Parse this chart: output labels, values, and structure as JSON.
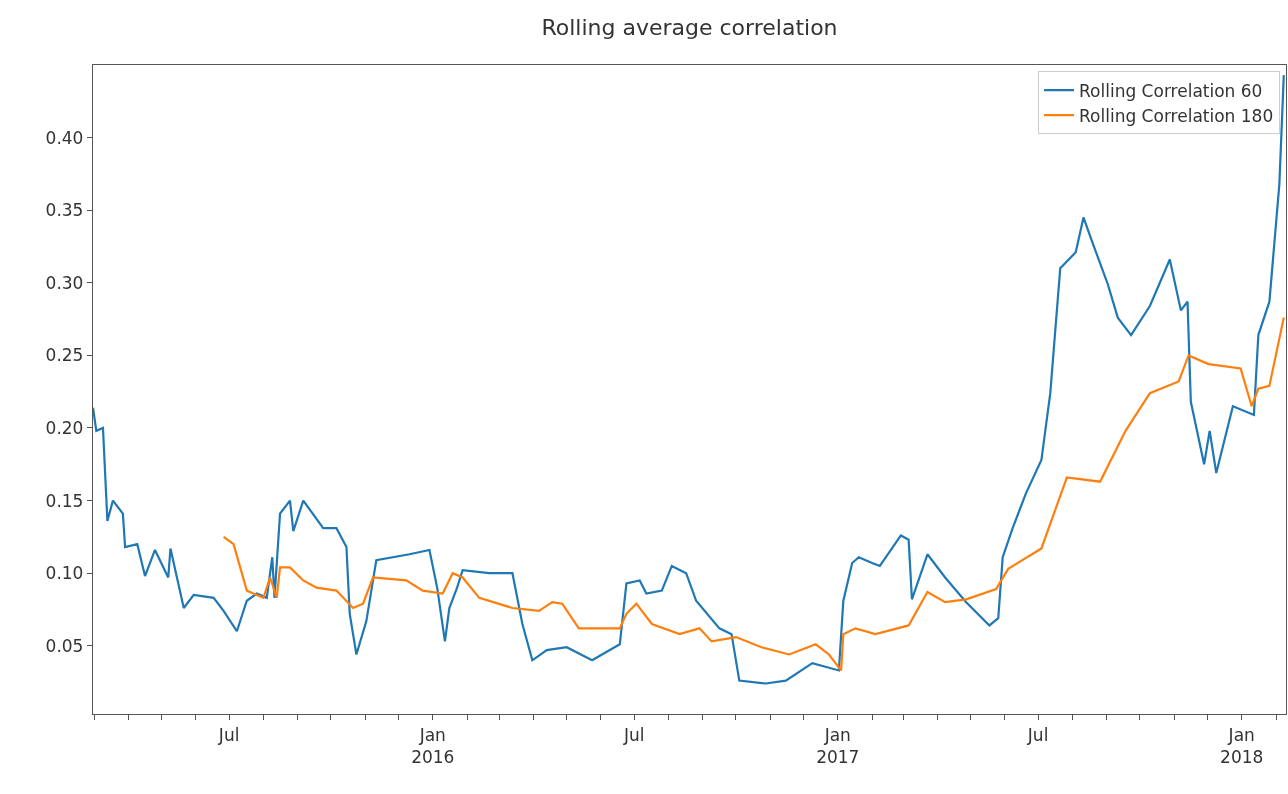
{
  "chart_data": {
    "type": "line",
    "title": "Rolling average correlation",
    "xlim": [
      "2015-02-28",
      "2018-02-10"
    ],
    "xticks": [
      {
        "value": "2015-03-01",
        "label": null
      },
      {
        "value": "2015-04-01",
        "label": null
      },
      {
        "value": "2015-05-01",
        "label": null
      },
      {
        "value": "2015-06-01",
        "label": null
      },
      {
        "value": "2015-07-01",
        "label": "Jul"
      },
      {
        "value": "2015-08-01",
        "label": null
      },
      {
        "value": "2015-09-01",
        "label": null
      },
      {
        "value": "2015-10-01",
        "label": null
      },
      {
        "value": "2015-11-01",
        "label": null
      },
      {
        "value": "2015-12-01",
        "label": null
      },
      {
        "value": "2016-01-01",
        "label": "Jan\n2016"
      },
      {
        "value": "2016-02-01",
        "label": null
      },
      {
        "value": "2016-03-01",
        "label": null
      },
      {
        "value": "2016-04-01",
        "label": null
      },
      {
        "value": "2016-05-01",
        "label": null
      },
      {
        "value": "2016-06-01",
        "label": null
      },
      {
        "value": "2016-07-01",
        "label": "Jul"
      },
      {
        "value": "2016-08-01",
        "label": null
      },
      {
        "value": "2016-09-01",
        "label": null
      },
      {
        "value": "2016-10-01",
        "label": null
      },
      {
        "value": "2016-11-01",
        "label": null
      },
      {
        "value": "2016-12-01",
        "label": null
      },
      {
        "value": "2017-01-01",
        "label": "Jan\n2017"
      },
      {
        "value": "2017-02-01",
        "label": null
      },
      {
        "value": "2017-03-01",
        "label": null
      },
      {
        "value": "2017-04-01",
        "label": null
      },
      {
        "value": "2017-05-01",
        "label": null
      },
      {
        "value": "2017-06-01",
        "label": null
      },
      {
        "value": "2017-07-01",
        "label": "Jul"
      },
      {
        "value": "2017-08-01",
        "label": null
      },
      {
        "value": "2017-09-01",
        "label": null
      },
      {
        "value": "2017-10-01",
        "label": null
      },
      {
        "value": "2017-11-01",
        "label": null
      },
      {
        "value": "2017-12-01",
        "label": null
      },
      {
        "value": "2018-01-01",
        "label": "Jan\n2018"
      },
      {
        "value": "2018-02-01",
        "label": null
      }
    ],
    "ylim": [
      0.003,
      0.45
    ],
    "yticks": [
      0.05,
      {
        "value": 0.1,
        "label": "0.10"
      },
      0.15,
      {
        "value": 0.2,
        "label": "0.20"
      },
      0.25,
      {
        "value": 0.3,
        "label": "0.30"
      },
      0.35,
      {
        "value": 0.4,
        "label": "0.40"
      }
    ],
    "legend": "top right",
    "marker": "none",
    "line_style": "solid",
    "series": [
      {
        "name": "Rolling Correlation 60",
        "color": "#1f77b4",
        "x": [
          "2015-02-28",
          "2015-03-03",
          "2015-03-09",
          "2015-03-13",
          "2015-03-18",
          "2015-03-27",
          "2015-03-29",
          "2015-04-09",
          "2015-04-16",
          "2015-04-25",
          "2015-05-07",
          "2015-05-09",
          "2015-05-21",
          "2015-05-30",
          "2015-06-17",
          "2015-06-26",
          "2015-07-08",
          "2015-07-17",
          "2015-07-26",
          "2015-08-04",
          "2015-08-09",
          "2015-08-11",
          "2015-08-16",
          "2015-08-25",
          "2015-08-28",
          "2015-09-06",
          "2015-09-24",
          "2015-10-06",
          "2015-10-15",
          "2015-10-18",
          "2015-10-24",
          "2015-11-02",
          "2015-11-11",
          "2015-12-11",
          "2015-12-29",
          "2016-01-05",
          "2016-01-12",
          "2016-01-16",
          "2016-01-23",
          "2016-01-28",
          "2016-02-21",
          "2016-03-13",
          "2016-03-22",
          "2016-03-31",
          "2016-04-13",
          "2016-05-01",
          "2016-05-24",
          "2016-06-18",
          "2016-06-24",
          "2016-07-06",
          "2016-07-12",
          "2016-07-26",
          "2016-08-04",
          "2016-08-17",
          "2016-08-26",
          "2016-09-16",
          "2016-09-27",
          "2016-10-04",
          "2016-10-28",
          "2016-11-15",
          "2016-12-09",
          "2017-01-02",
          "2017-01-06",
          "2017-01-14",
          "2017-01-20",
          "2017-02-01",
          "2017-02-08",
          "2017-02-27",
          "2017-03-06",
          "2017-03-09",
          "2017-03-23",
          "2017-04-08",
          "2017-04-27",
          "2017-05-18",
          "2017-05-26",
          "2017-05-30",
          "2017-06-08",
          "2017-06-20",
          "2017-07-04",
          "2017-07-12",
          "2017-07-21",
          "2017-08-04",
          "2017-08-11",
          "2017-08-18",
          "2017-09-02",
          "2017-09-11",
          "2017-09-23",
          "2017-10-10",
          "2017-10-28",
          "2017-11-07",
          "2017-11-13",
          "2017-11-16",
          "2017-11-28",
          "2017-12-03",
          "2017-12-09",
          "2017-12-24",
          "2018-01-12",
          "2018-01-16",
          "2018-01-26",
          "2018-02-04",
          "2018-02-08"
        ],
        "values": [
          0.214,
          0.198,
          0.2,
          0.136,
          0.15,
          0.141,
          0.118,
          0.12,
          0.098,
          0.116,
          0.097,
          0.117,
          0.076,
          0.085,
          0.083,
          0.074,
          0.06,
          0.081,
          0.086,
          0.083,
          0.111,
          0.083,
          0.141,
          0.15,
          0.129,
          0.15,
          0.131,
          0.131,
          0.118,
          0.072,
          0.044,
          0.067,
          0.109,
          0.113,
          0.116,
          0.09,
          0.053,
          0.076,
          0.09,
          0.102,
          0.1,
          0.1,
          0.065,
          0.04,
          0.047,
          0.049,
          0.04,
          0.051,
          0.093,
          0.095,
          0.086,
          0.088,
          0.105,
          0.1,
          0.081,
          0.062,
          0.058,
          0.026,
          0.024,
          0.026,
          0.038,
          0.033,
          0.081,
          0.107,
          0.111,
          0.107,
          0.105,
          0.126,
          0.123,
          0.082,
          0.113,
          0.097,
          0.08,
          0.064,
          0.069,
          0.111,
          0.131,
          0.155,
          0.178,
          0.224,
          0.31,
          0.321,
          0.345,
          0.33,
          0.299,
          0.276,
          0.264,
          0.284,
          0.316,
          0.281,
          0.287,
          0.218,
          0.175,
          0.198,
          0.169,
          0.215,
          0.209,
          0.264,
          0.287,
          0.368,
          0.443
        ]
      },
      {
        "name": "Rolling Correlation 180",
        "color": "#ff7f0e",
        "x": [
          "2015-06-26",
          "2015-07-05",
          "2015-07-11",
          "2015-07-17",
          "2015-08-01",
          "2015-08-07",
          "2015-08-13",
          "2015-08-16",
          "2015-08-25",
          "2015-09-06",
          "2015-09-18",
          "2015-10-06",
          "2015-10-21",
          "2015-10-30",
          "2015-11-08",
          "2015-12-08",
          "2015-12-23",
          "2016-01-10",
          "2016-01-19",
          "2016-01-28",
          "2016-02-12",
          "2016-03-13",
          "2016-04-06",
          "2016-04-18",
          "2016-04-27",
          "2016-05-12",
          "2016-06-18",
          "2016-06-24",
          "2016-07-03",
          "2016-07-17",
          "2016-08-11",
          "2016-08-29",
          "2016-09-09",
          "2016-10-01",
          "2016-10-24",
          "2016-11-18",
          "2016-12-12",
          "2016-12-24",
          "2017-01-04",
          "2017-01-06",
          "2017-01-17",
          "2017-02-04",
          "2017-03-06",
          "2017-03-23",
          "2017-04-08",
          "2017-04-27",
          "2017-05-24",
          "2017-06-04",
          "2017-07-04",
          "2017-07-27",
          "2017-08-26",
          "2017-09-18",
          "2017-10-10",
          "2017-11-05",
          "2017-11-14",
          "2017-12-02",
          "2017-12-31",
          "2018-01-10",
          "2018-01-16",
          "2018-01-26",
          "2018-02-08"
        ],
        "values": [
          0.125,
          0.12,
          0.104,
          0.088,
          0.083,
          0.097,
          0.083,
          0.104,
          0.104,
          0.095,
          0.09,
          0.088,
          0.076,
          0.079,
          0.097,
          0.095,
          0.088,
          0.086,
          0.1,
          0.097,
          0.083,
          0.076,
          0.074,
          0.08,
          0.079,
          0.062,
          0.062,
          0.072,
          0.079,
          0.065,
          0.058,
          0.062,
          0.053,
          0.056,
          0.049,
          0.044,
          0.051,
          0.044,
          0.033,
          0.058,
          0.062,
          0.058,
          0.064,
          0.087,
          0.08,
          0.082,
          0.089,
          0.103,
          0.117,
          0.166,
          0.163,
          0.198,
          0.224,
          0.232,
          0.25,
          0.244,
          0.241,
          0.215,
          0.227,
          0.229,
          0.276
        ]
      }
    ]
  }
}
